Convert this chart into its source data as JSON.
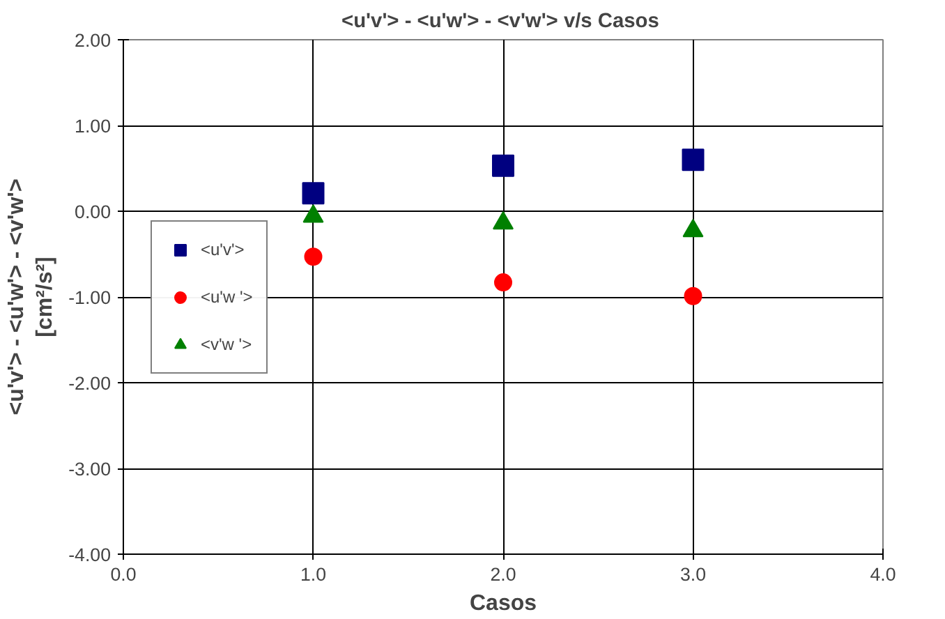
{
  "chart_data": {
    "type": "scatter",
    "title": "<u'v'> - <u'w'> - <v'w'>  v/s Casos",
    "xlabel": "Casos",
    "ylabel": "<u'v'> - <u'w'> - <v'w'>\n[cm²/s²]",
    "x": [
      1,
      2,
      3
    ],
    "series": [
      {
        "name": "<u'v'>",
        "color": "#000080",
        "marker": "square",
        "values": [
          0.21,
          0.53,
          0.6
        ]
      },
      {
        "name": "<u'w '>",
        "color": "#ff0000",
        "marker": "circle",
        "values": [
          -0.53,
          -0.83,
          -0.99
        ]
      },
      {
        "name": "<v'w '>",
        "color": "#008000",
        "marker": "triangle",
        "values": [
          -0.06,
          -0.14,
          -0.23
        ]
      }
    ],
    "xlim": [
      0,
      4
    ],
    "xticks": [
      {
        "value": 0,
        "label": "0.0"
      },
      {
        "value": 1,
        "label": "1.0"
      },
      {
        "value": 2,
        "label": "2.0"
      },
      {
        "value": 3,
        "label": "3.0"
      },
      {
        "value": 4,
        "label": "4.0"
      }
    ],
    "ylim": [
      -4,
      2
    ],
    "yticks": [
      {
        "value": -4,
        "label": "-4.00"
      },
      {
        "value": -3,
        "label": "-3.00"
      },
      {
        "value": -2,
        "label": "-2.00"
      },
      {
        "value": -1,
        "label": "-1.00"
      },
      {
        "value": 0,
        "label": "0.00"
      },
      {
        "value": 1,
        "label": "1.00"
      },
      {
        "value": 2,
        "label": "2.00"
      }
    ],
    "grid": true,
    "legend": "left"
  }
}
